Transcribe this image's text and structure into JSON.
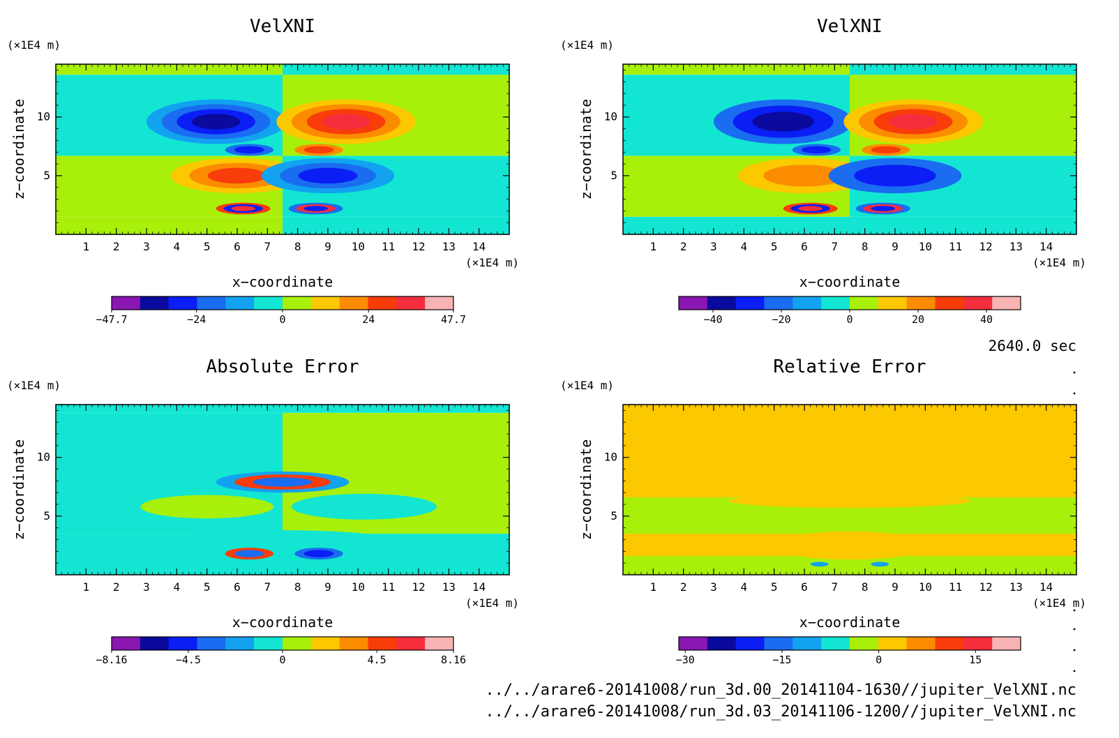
{
  "time_label": "2640.0 sec",
  "footer_files": [
    "../../arare6-20141008/run_3d.00_20141104-1630//jupiter_VelXNI.nc",
    "../../arare6-20141008/run_3d.03_20141106-1200//jupiter_VelXNI.nc"
  ],
  "colors": {
    "levels": [
      "#8a17b2",
      "#0a0a9e",
      "#0a1ef5",
      "#1a6cf0",
      "#12a2f0",
      "#12e6d2",
      "#a8f00a",
      "#fcc800",
      "#fb8c00",
      "#f83c0a",
      "#f52d3c",
      "#f8b4b4"
    ]
  },
  "chart_data": [
    {
      "type": "heatmap",
      "title": "VelXNI",
      "xlabel": "x−coordinate",
      "ylabel": "z−coordinate",
      "x_unit": "(×1E4 m)",
      "y_unit": "(×1E4 m)",
      "xlim": [
        0,
        15
      ],
      "ylim": [
        0,
        14.5
      ],
      "x_ticks": [
        "1",
        "2",
        "3",
        "4",
        "5",
        "6",
        "7",
        "8",
        "9",
        "10",
        "11",
        "12",
        "13",
        "14"
      ],
      "y_ticks": [
        "5",
        "10"
      ],
      "colorbar_ticks": [
        {
          "label": "−47.7",
          "value": -47.7
        },
        {
          "label": "−24",
          "value": -24
        },
        {
          "label": "0",
          "value": 0
        },
        {
          "label": "24",
          "value": 24
        },
        {
          "label": "47.7",
          "value": 47.7
        }
      ],
      "colorbar_range": [
        -47.7,
        47.7
      ],
      "background_bands": [
        {
          "y0": 0,
          "y1": 1.5,
          "left": 6,
          "right": 5
        },
        {
          "y0": 1.5,
          "y1": 6.7,
          "left": 6,
          "right": 5
        },
        {
          "y0": 6.7,
          "y1": 13.6,
          "left": 5,
          "right": 6
        },
        {
          "y0": 13.6,
          "y1": 14.5,
          "left": 6,
          "right": 5
        }
      ],
      "features": [
        {
          "x": 5.3,
          "z": 9.6,
          "rx": 2.3,
          "rz": 1.9,
          "levels": [
            4,
            3,
            2,
            1
          ]
        },
        {
          "x": 9.6,
          "z": 9.6,
          "rx": 2.3,
          "rz": 1.9,
          "levels": [
            7,
            8,
            9,
            10
          ]
        },
        {
          "x": 6.0,
          "z": 5.0,
          "rx": 2.2,
          "rz": 1.5,
          "levels": [
            7,
            8,
            9
          ]
        },
        {
          "x": 9.0,
          "z": 5.0,
          "rx": 2.2,
          "rz": 1.5,
          "levels": [
            4,
            3,
            2
          ]
        },
        {
          "x": 6.4,
          "z": 7.2,
          "rx": 0.8,
          "rz": 0.5,
          "levels": [
            3,
            2
          ]
        },
        {
          "x": 8.7,
          "z": 7.2,
          "rx": 0.8,
          "rz": 0.5,
          "levels": [
            8,
            9
          ]
        },
        {
          "x": 6.2,
          "z": 2.2,
          "rx": 0.9,
          "rz": 0.5,
          "levels": [
            9,
            2,
            10
          ]
        },
        {
          "x": 8.6,
          "z": 2.2,
          "rx": 0.9,
          "rz": 0.5,
          "levels": [
            3,
            10,
            2
          ]
        }
      ]
    },
    {
      "type": "heatmap",
      "title": "VelXNI",
      "xlabel": "x−coordinate",
      "ylabel": "z−coordinate",
      "x_unit": "(×1E4 m)",
      "y_unit": "(×1E4 m)",
      "xlim": [
        0,
        15
      ],
      "ylim": [
        0,
        14.5
      ],
      "x_ticks": [
        "1",
        "2",
        "3",
        "4",
        "5",
        "6",
        "7",
        "8",
        "9",
        "10",
        "11",
        "12",
        "13",
        "14"
      ],
      "y_ticks": [
        "5",
        "10"
      ],
      "colorbar_ticks": [
        {
          "label": "−40",
          "value": -40
        },
        {
          "label": "−20",
          "value": -20
        },
        {
          "label": "0",
          "value": 0
        },
        {
          "label": "20",
          "value": 20
        },
        {
          "label": "40",
          "value": 40
        }
      ],
      "colorbar_range": [
        -50,
        50
      ],
      "background_bands": [
        {
          "y0": 0,
          "y1": 1.5,
          "left": 5,
          "right": 5
        },
        {
          "y0": 1.5,
          "y1": 6.7,
          "left": 6,
          "right": 5
        },
        {
          "y0": 6.7,
          "y1": 13.6,
          "left": 5,
          "right": 6
        },
        {
          "y0": 13.6,
          "y1": 14.5,
          "left": 6,
          "right": 5
        }
      ],
      "features": [
        {
          "x": 5.3,
          "z": 9.6,
          "rx": 2.3,
          "rz": 1.9,
          "levels": [
            3,
            2,
            1
          ]
        },
        {
          "x": 9.6,
          "z": 9.6,
          "rx": 2.3,
          "rz": 1.9,
          "levels": [
            7,
            8,
            9,
            10
          ]
        },
        {
          "x": 6.0,
          "z": 5.0,
          "rx": 2.2,
          "rz": 1.5,
          "levels": [
            7,
            8
          ]
        },
        {
          "x": 9.0,
          "z": 5.0,
          "rx": 2.2,
          "rz": 1.5,
          "levels": [
            3,
            2
          ]
        },
        {
          "x": 6.4,
          "z": 7.2,
          "rx": 0.8,
          "rz": 0.5,
          "levels": [
            3,
            2
          ]
        },
        {
          "x": 8.7,
          "z": 7.2,
          "rx": 0.8,
          "rz": 0.5,
          "levels": [
            8,
            9
          ]
        },
        {
          "x": 6.2,
          "z": 2.2,
          "rx": 0.9,
          "rz": 0.5,
          "levels": [
            9,
            2,
            10
          ]
        },
        {
          "x": 8.6,
          "z": 2.2,
          "rx": 0.9,
          "rz": 0.5,
          "levels": [
            3,
            10,
            2
          ]
        }
      ]
    },
    {
      "type": "heatmap",
      "title": "Absolute Error",
      "xlabel": "x−coordinate",
      "ylabel": "z−coordinate",
      "x_unit": "(×1E4 m)",
      "y_unit": "(×1E4 m)",
      "xlim": [
        0,
        15
      ],
      "ylim": [
        0,
        14.5
      ],
      "x_ticks": [
        "1",
        "2",
        "3",
        "4",
        "5",
        "6",
        "7",
        "8",
        "9",
        "10",
        "11",
        "12",
        "13",
        "14"
      ],
      "y_ticks": [
        "5",
        "10"
      ],
      "colorbar_ticks": [
        {
          "label": "−8.16",
          "value": -8.16
        },
        {
          "label": "−4.5",
          "value": -4.5
        },
        {
          "label": "0",
          "value": 0
        },
        {
          "label": "4.5",
          "value": 4.5
        },
        {
          "label": "8.16",
          "value": 8.16
        }
      ],
      "colorbar_range": [
        -8.16,
        8.16
      ],
      "background_bands": [
        {
          "y0": 0,
          "y1": 3.5,
          "left": 5,
          "right": 5
        },
        {
          "y0": 3.5,
          "y1": 13.8,
          "left": 5,
          "right": 6
        },
        {
          "y0": 13.8,
          "y1": 14.5,
          "left": 5,
          "right": 5
        }
      ],
      "features": [
        {
          "x": 5.0,
          "z": 5.8,
          "rx": 2.2,
          "rz": 1.0,
          "levels": [
            6
          ]
        },
        {
          "x": 10.2,
          "z": 5.8,
          "rx": 2.4,
          "rz": 1.1,
          "levels": [
            5
          ]
        },
        {
          "x": 7.5,
          "z": 7.9,
          "rx": 2.2,
          "rz": 0.9,
          "levels": [
            4,
            9,
            3
          ]
        },
        {
          "x": 7.5,
          "z": 3.0,
          "rx": 3.5,
          "rz": 0.8,
          "levels": [
            5
          ]
        },
        {
          "x": 6.4,
          "z": 1.8,
          "rx": 0.8,
          "rz": 0.5,
          "levels": [
            9,
            3
          ]
        },
        {
          "x": 8.7,
          "z": 1.8,
          "rx": 0.8,
          "rz": 0.5,
          "levels": [
            3,
            2
          ]
        }
      ]
    },
    {
      "type": "heatmap",
      "title": "Relative Error",
      "xlabel": "x−coordinate",
      "ylabel": "z−coordinate",
      "x_unit": "(×1E4 m)",
      "y_unit": "(×1E4 m)",
      "xlim": [
        0,
        15
      ],
      "ylim": [
        0,
        14.5
      ],
      "x_ticks": [
        "1",
        "2",
        "3",
        "4",
        "5",
        "6",
        "7",
        "8",
        "9",
        "10",
        "11",
        "12",
        "13",
        "14"
      ],
      "y_ticks": [
        "5",
        "10"
      ],
      "colorbar_ticks": [
        {
          "label": "−30",
          "value": -30
        },
        {
          "label": "−15",
          "value": -15
        },
        {
          "label": "0",
          "value": 0
        },
        {
          "label": "15",
          "value": 15
        }
      ],
      "colorbar_range": [
        -31,
        22
      ],
      "background_bands": [
        {
          "y0": 0,
          "y1": 1.6,
          "left": 6,
          "right": 6
        },
        {
          "y0": 1.6,
          "y1": 3.5,
          "left": 7,
          "right": 7
        },
        {
          "y0": 3.5,
          "y1": 6.6,
          "left": 6,
          "right": 6
        },
        {
          "y0": 6.6,
          "y1": 14.5,
          "left": 7,
          "right": 7
        }
      ],
      "features": [
        {
          "x": 7.5,
          "z": 6.3,
          "rx": 4.0,
          "rz": 0.6,
          "levels": [
            7
          ]
        },
        {
          "x": 7.5,
          "z": 2.5,
          "rx": 2.6,
          "rz": 1.2,
          "levels": [
            7
          ]
        },
        {
          "x": 6.5,
          "z": 0.9,
          "rx": 0.3,
          "rz": 0.2,
          "levels": [
            4
          ]
        },
        {
          "x": 8.5,
          "z": 0.9,
          "rx": 0.3,
          "rz": 0.2,
          "levels": [
            4
          ]
        }
      ]
    }
  ]
}
